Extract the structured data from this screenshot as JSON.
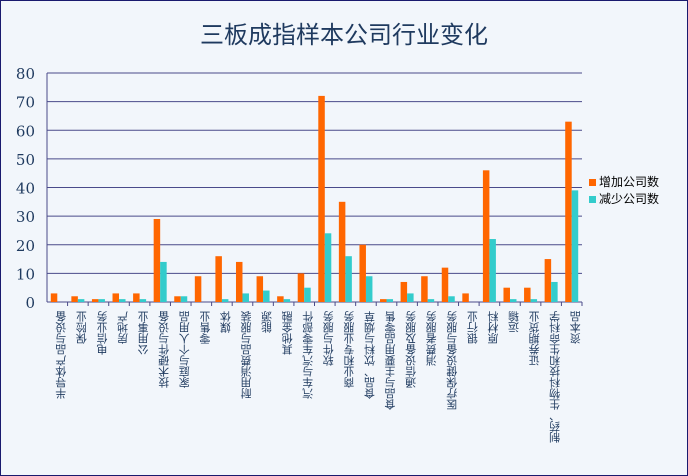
{
  "chart_data": {
    "type": "bar",
    "title": "三板成指样本公司行业变化",
    "ylim": [
      0,
      80
    ],
    "yticks": [
      0,
      10,
      20,
      30,
      40,
      50,
      60,
      70,
      80
    ],
    "grid": true,
    "legend_position": "right",
    "categories": [
      "半导体产品与设备",
      "保险业",
      "电信业务",
      "房地产",
      "公用事业",
      "技术硬件与设备",
      "家庭与个人用品",
      "零售业",
      "媒体",
      "耐用消费品与服装",
      "能源",
      "其他金融",
      "汽车与汽车零部件",
      "软件与服务",
      "商业和专业服务",
      "食品、饮料与烟草",
      "食品与主要用品零售",
      "通信设备及服务",
      "消费者服务",
      "医疗保健设备与服务",
      "银行业",
      "原材料",
      "运输",
      "证券期货业",
      "制药、生物科技和生命科学",
      "资本品"
    ],
    "series": [
      {
        "name": "增加公司数",
        "color": "#ff6600",
        "values": [
          3,
          2,
          1,
          3,
          3,
          29,
          2,
          9,
          16,
          14,
          9,
          2,
          10,
          72,
          35,
          20,
          1,
          7,
          9,
          12,
          3,
          46,
          5,
          5,
          15,
          63
        ]
      },
      {
        "name": "减少公司数",
        "color": "#33cccc",
        "values": [
          0,
          1,
          1,
          1,
          1,
          14,
          2,
          0,
          1,
          3,
          4,
          1,
          5,
          24,
          16,
          9,
          1,
          3,
          1,
          2,
          0,
          22,
          1,
          1,
          7,
          39
        ]
      }
    ]
  }
}
